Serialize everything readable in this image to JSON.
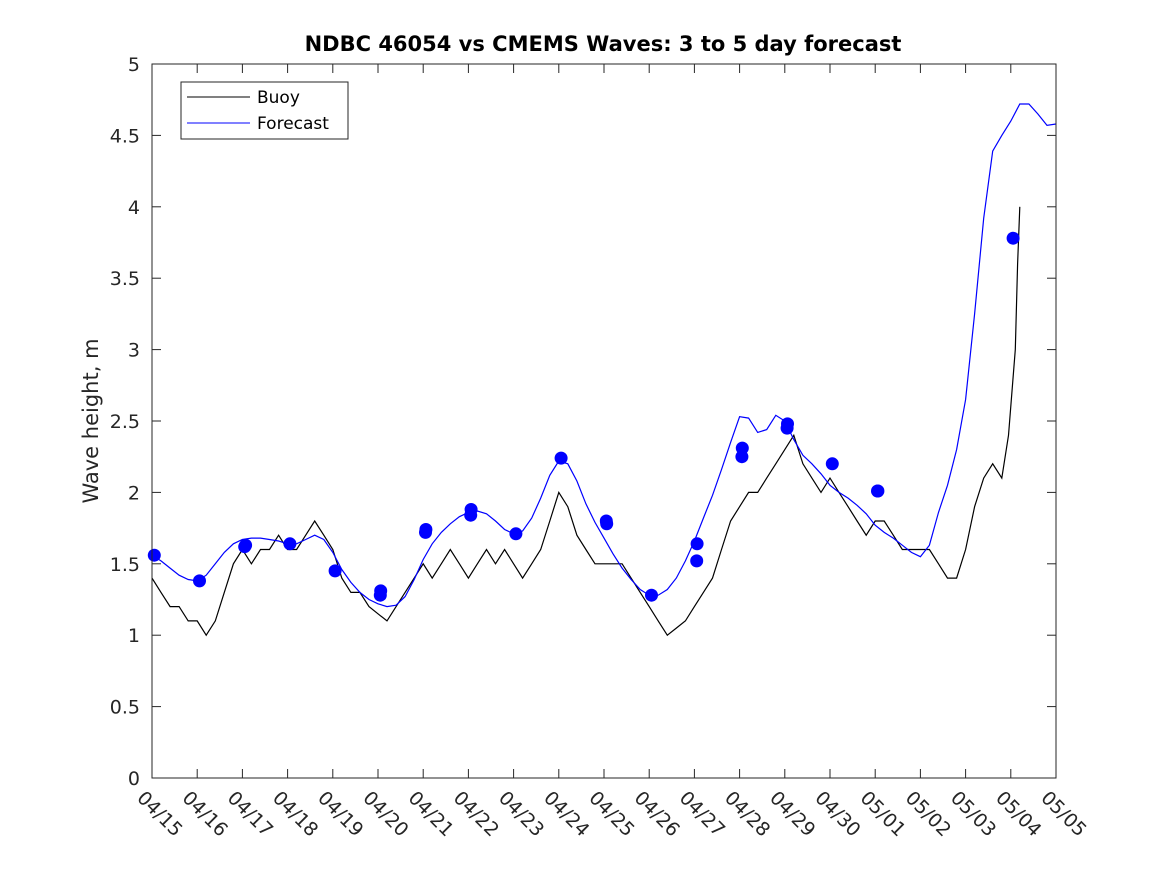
{
  "chart_data": {
    "type": "line",
    "title": "NDBC 46054 vs CMEMS Waves: 3 to 5 day forecast",
    "xlabel": "",
    "ylabel": "Wave height, m",
    "ylim": [
      0,
      5
    ],
    "yticks": [
      "0",
      "0.5",
      "1",
      "1.5",
      "2",
      "2.5",
      "3",
      "3.5",
      "4",
      "4.5",
      "5"
    ],
    "xlim": [
      0,
      20
    ],
    "xticks": [
      "04/15",
      "04/16",
      "04/17",
      "04/18",
      "04/19",
      "04/20",
      "04/21",
      "04/22",
      "04/23",
      "04/24",
      "04/25",
      "04/26",
      "04/27",
      "04/28",
      "04/29",
      "04/30",
      "05/01",
      "05/02",
      "05/03",
      "05/04",
      "05/05"
    ],
    "grid": false,
    "legend": {
      "position": "top-left",
      "entries": [
        {
          "name": "Buoy",
          "color": "#000000"
        },
        {
          "name": "Forecast",
          "color": "#0000ff"
        }
      ]
    },
    "series": [
      {
        "name": "Buoy",
        "color": "#000000",
        "x": [
          0.0,
          0.2,
          0.4,
          0.6,
          0.8,
          1.0,
          1.2,
          1.4,
          1.6,
          1.8,
          2.0,
          2.2,
          2.4,
          2.6,
          2.8,
          3.0,
          3.2,
          3.4,
          3.6,
          3.8,
          4.0,
          4.2,
          4.4,
          4.6,
          4.8,
          5.0,
          5.2,
          5.4,
          5.6,
          5.8,
          6.0,
          6.2,
          6.4,
          6.6,
          6.8,
          7.0,
          7.2,
          7.4,
          7.6,
          7.8,
          8.0,
          8.2,
          8.4,
          8.6,
          8.8,
          9.0,
          9.2,
          9.4,
          9.6,
          9.8,
          10.0,
          10.2,
          10.4,
          10.6,
          10.8,
          11.0,
          11.2,
          11.4,
          11.6,
          11.8,
          12.0,
          12.2,
          12.4,
          12.6,
          12.8,
          13.0,
          13.2,
          13.4,
          13.6,
          13.8,
          14.0,
          14.2,
          14.4,
          14.6,
          14.8,
          15.0,
          15.2,
          15.4,
          15.6,
          15.8,
          16.0,
          16.2,
          16.4,
          16.6,
          16.8,
          17.0,
          17.2,
          17.4,
          17.6,
          17.8,
          18.0,
          18.2,
          18.4,
          18.6,
          18.8,
          18.95,
          19.1,
          19.15,
          19.2
        ],
        "values": [
          1.4,
          1.3,
          1.2,
          1.2,
          1.1,
          1.1,
          1.0,
          1.1,
          1.3,
          1.5,
          1.6,
          1.5,
          1.6,
          1.6,
          1.7,
          1.6,
          1.6,
          1.7,
          1.8,
          1.7,
          1.6,
          1.4,
          1.3,
          1.3,
          1.2,
          1.15,
          1.1,
          1.2,
          1.3,
          1.4,
          1.5,
          1.4,
          1.5,
          1.6,
          1.5,
          1.4,
          1.5,
          1.6,
          1.5,
          1.6,
          1.5,
          1.4,
          1.5,
          1.6,
          1.8,
          2.0,
          1.9,
          1.7,
          1.6,
          1.5,
          1.5,
          1.5,
          1.5,
          1.4,
          1.3,
          1.2,
          1.1,
          1.0,
          1.05,
          1.1,
          1.2,
          1.3,
          1.4,
          1.6,
          1.8,
          1.9,
          2.0,
          2.0,
          2.1,
          2.2,
          2.3,
          2.4,
          2.2,
          2.1,
          2.0,
          2.1,
          2.0,
          1.9,
          1.8,
          1.7,
          1.8,
          1.8,
          1.7,
          1.6,
          1.6,
          1.6,
          1.6,
          1.5,
          1.4,
          1.4,
          1.6,
          1.9,
          2.1,
          2.2,
          2.1,
          2.4,
          3.0,
          3.6,
          4.0
        ]
      },
      {
        "name": "Forecast",
        "color": "#0000ff",
        "x": [
          0.0,
          0.2,
          0.4,
          0.6,
          0.8,
          1.0,
          1.2,
          1.4,
          1.6,
          1.8,
          2.0,
          2.2,
          2.4,
          2.6,
          2.8,
          3.0,
          3.2,
          3.4,
          3.6,
          3.8,
          4.0,
          4.2,
          4.4,
          4.6,
          4.8,
          5.0,
          5.2,
          5.4,
          5.6,
          5.8,
          6.0,
          6.2,
          6.4,
          6.6,
          6.8,
          7.0,
          7.2,
          7.4,
          7.6,
          7.8,
          8.0,
          8.2,
          8.4,
          8.6,
          8.8,
          9.0,
          9.2,
          9.4,
          9.6,
          9.8,
          10.0,
          10.2,
          10.4,
          10.6,
          10.8,
          11.0,
          11.2,
          11.4,
          11.6,
          11.8,
          12.0,
          12.2,
          12.4,
          12.6,
          12.8,
          13.0,
          13.2,
          13.4,
          13.6,
          13.8,
          14.0,
          14.2,
          14.4,
          14.6,
          14.8,
          15.0,
          15.2,
          15.4,
          15.6,
          15.8,
          16.0,
          16.2,
          16.4,
          16.6,
          16.8,
          17.0,
          17.2,
          17.4,
          17.6,
          17.8,
          18.0,
          18.2,
          18.4,
          18.6,
          18.8,
          19.0,
          19.2,
          19.4,
          19.6,
          19.8,
          20.0
        ],
        "values": [
          1.56,
          1.52,
          1.47,
          1.42,
          1.39,
          1.38,
          1.42,
          1.5,
          1.58,
          1.64,
          1.67,
          1.68,
          1.68,
          1.67,
          1.66,
          1.64,
          1.64,
          1.67,
          1.7,
          1.67,
          1.58,
          1.46,
          1.37,
          1.3,
          1.25,
          1.22,
          1.2,
          1.21,
          1.27,
          1.39,
          1.53,
          1.64,
          1.72,
          1.78,
          1.83,
          1.86,
          1.87,
          1.85,
          1.8,
          1.74,
          1.71,
          1.73,
          1.82,
          1.96,
          2.12,
          2.22,
          2.2,
          2.08,
          1.92,
          1.79,
          1.68,
          1.57,
          1.47,
          1.39,
          1.32,
          1.28,
          1.28,
          1.32,
          1.4,
          1.52,
          1.66,
          1.82,
          1.98,
          2.16,
          2.35,
          2.53,
          2.52,
          2.42,
          2.44,
          2.54,
          2.5,
          2.37,
          2.26,
          2.2,
          2.13,
          2.05,
          2.0,
          1.96,
          1.91,
          1.85,
          1.77,
          1.72,
          1.68,
          1.63,
          1.58,
          1.55,
          1.63,
          1.86,
          2.05,
          2.3,
          2.65,
          3.25,
          3.92,
          4.39,
          4.5,
          4.6,
          4.72,
          4.72,
          4.65,
          4.57,
          4.58
        ]
      }
    ],
    "forecast_points": {
      "x": [
        0.05,
        1.05,
        2.05,
        2.07,
        3.05,
        4.05,
        5.05,
        5.06,
        6.05,
        6.06,
        7.05,
        7.06,
        8.05,
        9.05,
        10.05,
        10.06,
        11.05,
        12.05,
        12.06,
        13.05,
        13.06,
        14.05,
        14.06,
        15.05,
        16.05,
        16.06,
        19.05
      ],
      "values": [
        1.56,
        1.38,
        1.62,
        1.63,
        1.64,
        1.45,
        1.28,
        1.31,
        1.72,
        1.74,
        1.84,
        1.88,
        1.71,
        2.24,
        1.8,
        1.78,
        1.28,
        1.52,
        1.64,
        2.25,
        2.31,
        2.45,
        2.48,
        2.2,
        2.01,
        2.01,
        3.78
      ]
    }
  }
}
